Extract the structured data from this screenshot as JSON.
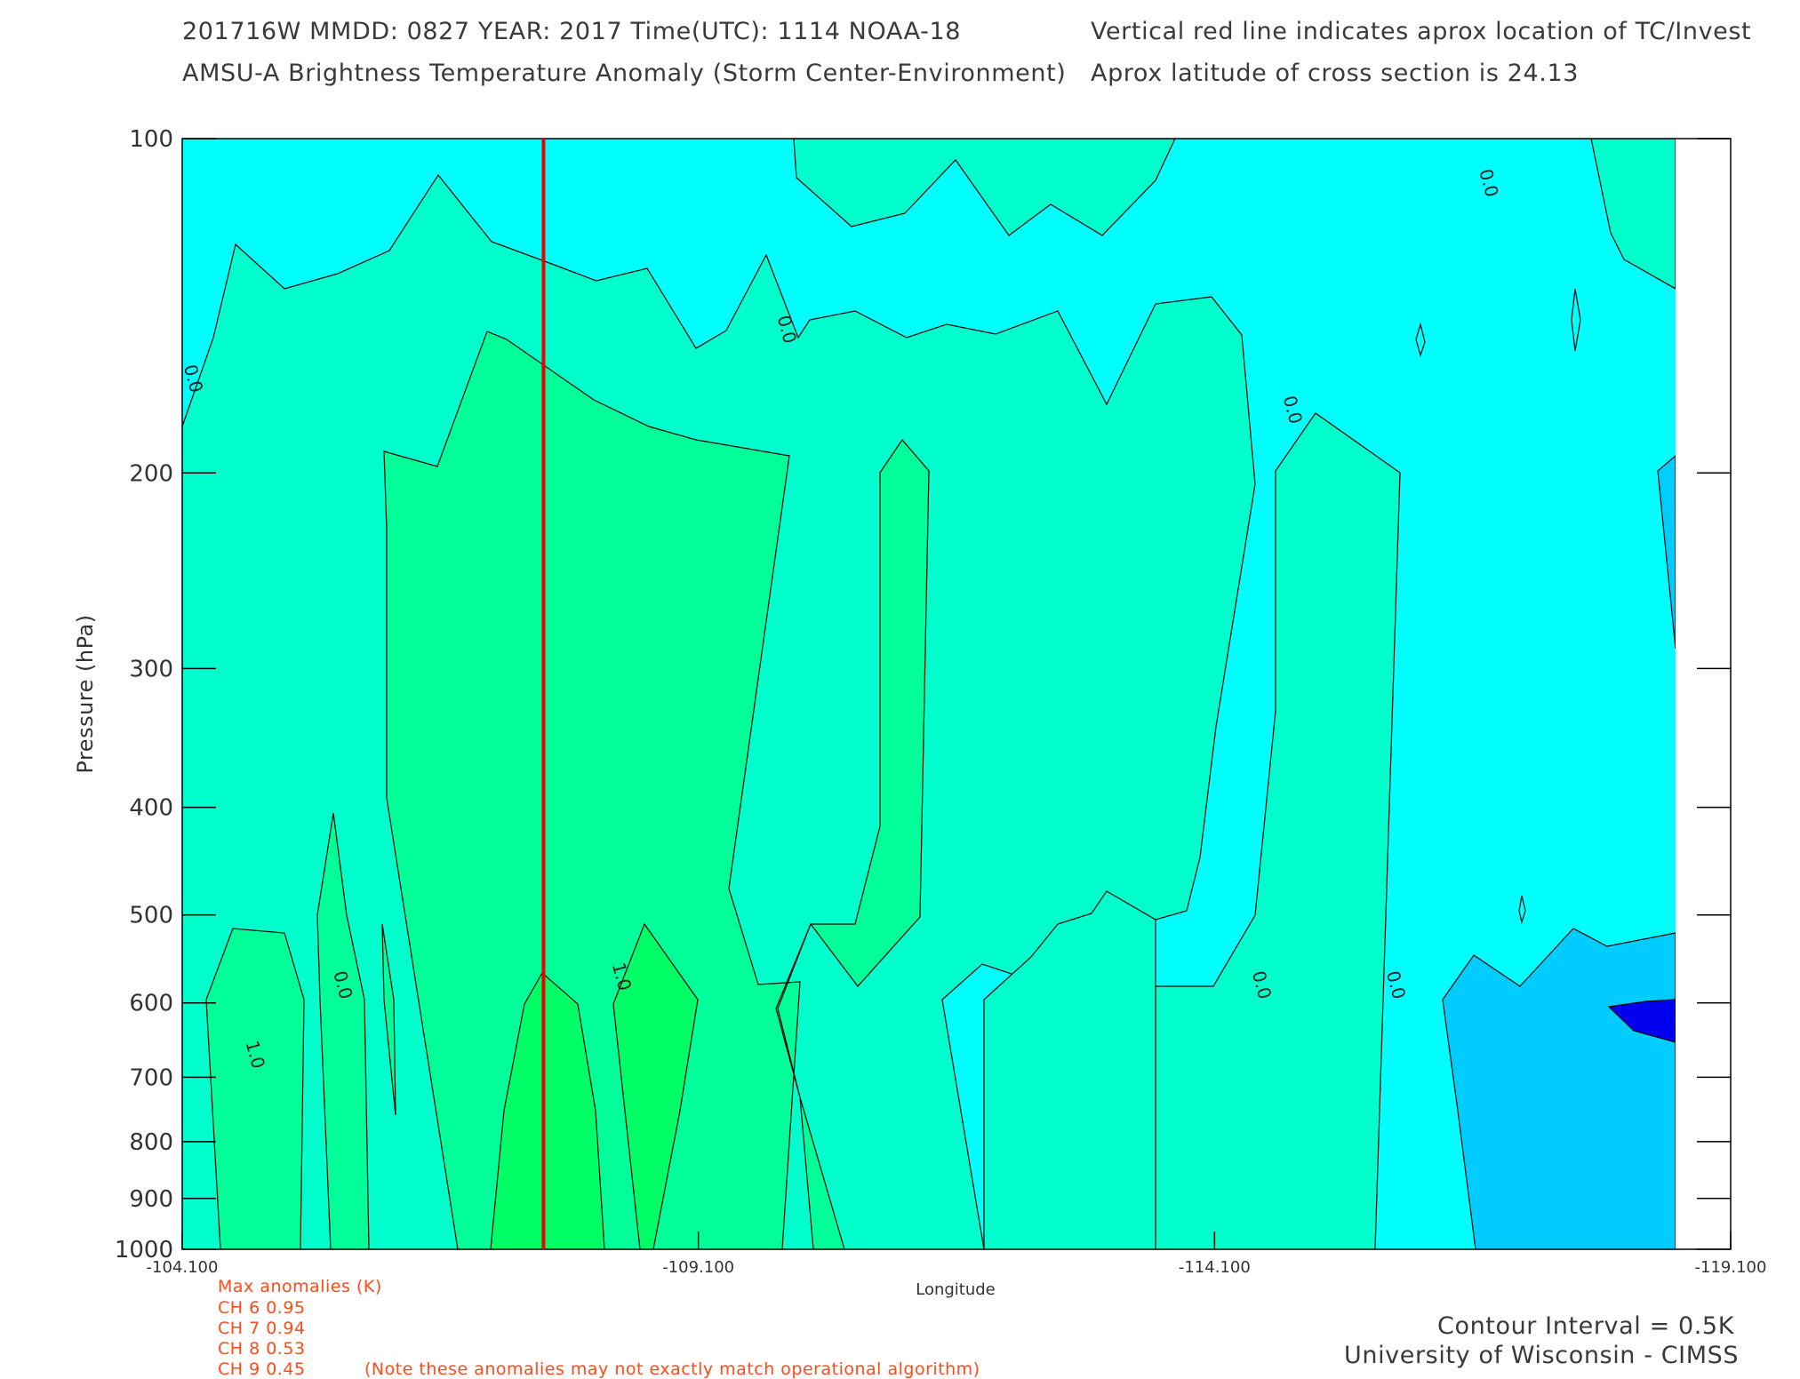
{
  "header": {
    "line1_left": "201716W  MMDD: 0827 YEAR: 2017 Time(UTC): 1114 NOAA-18",
    "line2_left": "AMSU-A Brightness Temperature Anomaly (Storm Center-Environment)",
    "line1_right": "Vertical red line indicates aprox location of TC/Invest",
    "line2_right": "Aprox latitude of cross section is 24.13"
  },
  "max_anomalies": {
    "title": "Max anomalies (K)",
    "rows": [
      "CH 6  0.95",
      "CH 7  0.94",
      "CH 8  0.53",
      "CH 9  0.45"
    ],
    "note": "(Note these anomalies may not exactly match operational algorithm)"
  },
  "footer": {
    "contour_interval": "Contour Interval = 0.5K",
    "credit": "University of Wisconsin - CIMSS"
  },
  "colors": {
    "level_neg1": "#0000ee",
    "level_neg05": "#00ccff",
    "level_0": "#00ffff",
    "level_05": "#00ffcc",
    "level_1": "#00ff99",
    "level_15": "#00ff66",
    "level_2": "#00ff33",
    "tc_line": "#ee0000",
    "contour": "#000000"
  },
  "chart_data": {
    "type": "heatmap",
    "subtype": "filled-contour cross section",
    "xlabel": "Longitude",
    "ylabel": "Pressure (hPa)",
    "xlim": [
      -104.1,
      -119.1
    ],
    "ylim": [
      1000,
      100
    ],
    "y_scale": "log (pressure)",
    "x_ticks": [
      "-104.100",
      "-109.100",
      "-114.100",
      "-119.100"
    ],
    "y_ticks": [
      "100",
      "200",
      "300",
      "400",
      "500",
      "600",
      "700",
      "800",
      "900",
      "1000"
    ],
    "contour_interval_K": 0.5,
    "tc_longitude": -107.6,
    "contour_labels": [
      {
        "text": "0.0",
        "lon": -104.15,
        "p": 165
      },
      {
        "text": "0.0",
        "lon": -109.9,
        "p": 149
      },
      {
        "text": "0.0",
        "lon": -114.8,
        "p": 176
      },
      {
        "text": "0.0",
        "lon": -116.7,
        "p": 110
      },
      {
        "text": "0.0",
        "lon": -105.6,
        "p": 580
      },
      {
        "text": "0.0",
        "lon": -114.5,
        "p": 580
      },
      {
        "text": "0.0",
        "lon": -115.8,
        "p": 580
      },
      {
        "text": "1.0",
        "lon": -104.75,
        "p": 670
      },
      {
        "text": "1.0",
        "lon": -108.3,
        "p": 570
      }
    ],
    "regions_K": [
      {
        "value": 0.0,
        "description": "background level"
      },
      {
        "value": 0.5,
        "description": "upper and western large region"
      },
      {
        "value": 1.0,
        "description": "central column 180-1000 hPa"
      },
      {
        "value": 1.5,
        "description": "low-level core near TC"
      },
      {
        "value": -0.5,
        "description": "lower-level region at far west"
      },
      {
        "value": -1.0,
        "description": "small pocket near 620 hPa at far west"
      }
    ]
  }
}
